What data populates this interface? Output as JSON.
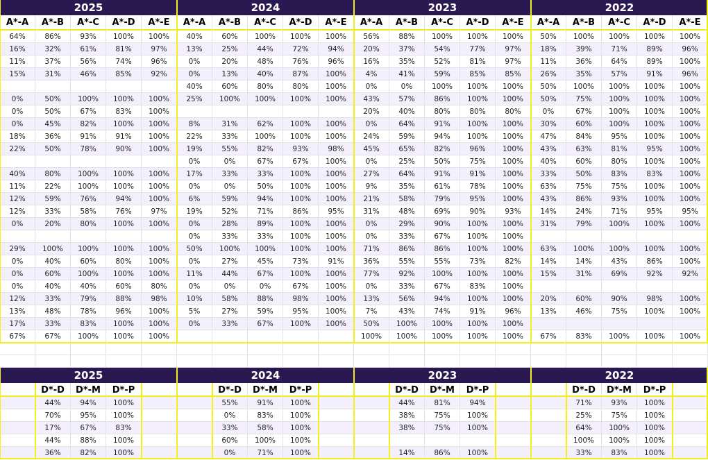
{
  "top": {
    "years": [
      "2025",
      "2024",
      "2023",
      "2022"
    ],
    "columns": [
      "A*-A",
      "A*-B",
      "A*-C",
      "A*-D",
      "A*-E"
    ],
    "rows": [
      [
        "64%",
        "86%",
        "93%",
        "100%",
        "100%",
        "40%",
        "60%",
        "100%",
        "100%",
        "100%",
        "56%",
        "88%",
        "100%",
        "100%",
        "100%",
        "50%",
        "100%",
        "100%",
        "100%",
        "100%"
      ],
      [
        "16%",
        "32%",
        "61%",
        "81%",
        "97%",
        "13%",
        "25%",
        "44%",
        "72%",
        "94%",
        "20%",
        "37%",
        "54%",
        "77%",
        "97%",
        "18%",
        "39%",
        "71%",
        "89%",
        "96%"
      ],
      [
        "11%",
        "37%",
        "56%",
        "74%",
        "96%",
        "0%",
        "20%",
        "48%",
        "76%",
        "96%",
        "16%",
        "35%",
        "52%",
        "81%",
        "97%",
        "11%",
        "36%",
        "64%",
        "89%",
        "100%"
      ],
      [
        "15%",
        "31%",
        "46%",
        "85%",
        "92%",
        "0%",
        "13%",
        "40%",
        "87%",
        "100%",
        "4%",
        "41%",
        "59%",
        "85%",
        "85%",
        "26%",
        "35%",
        "57%",
        "91%",
        "96%"
      ],
      [
        null,
        null,
        null,
        null,
        null,
        "40%",
        "60%",
        "80%",
        "80%",
        "100%",
        "0%",
        "0%",
        "100%",
        "100%",
        "100%",
        "50%",
        "100%",
        "100%",
        "100%",
        "100%"
      ],
      [
        "0%",
        "50%",
        "100%",
        "100%",
        "100%",
        "25%",
        "100%",
        "100%",
        "100%",
        "100%",
        "43%",
        "57%",
        "86%",
        "100%",
        "100%",
        "50%",
        "75%",
        "100%",
        "100%",
        "100%"
      ],
      [
        "0%",
        "50%",
        "67%",
        "83%",
        "100%",
        null,
        null,
        null,
        null,
        null,
        "20%",
        "40%",
        "80%",
        "80%",
        "80%",
        "0%",
        "67%",
        "100%",
        "100%",
        "100%"
      ],
      [
        "0%",
        "45%",
        "82%",
        "100%",
        "100%",
        "8%",
        "31%",
        "62%",
        "100%",
        "100%",
        "0%",
        "64%",
        "91%",
        "100%",
        "100%",
        "30%",
        "60%",
        "100%",
        "100%",
        "100%"
      ],
      [
        "18%",
        "36%",
        "91%",
        "91%",
        "100%",
        "22%",
        "33%",
        "100%",
        "100%",
        "100%",
        "24%",
        "59%",
        "94%",
        "100%",
        "100%",
        "47%",
        "84%",
        "95%",
        "100%",
        "100%"
      ],
      [
        "22%",
        "50%",
        "78%",
        "90%",
        "100%",
        "19%",
        "55%",
        "82%",
        "93%",
        "98%",
        "45%",
        "65%",
        "82%",
        "96%",
        "100%",
        "43%",
        "63%",
        "81%",
        "95%",
        "100%"
      ],
      [
        null,
        null,
        null,
        null,
        null,
        "0%",
        "0%",
        "67%",
        "67%",
        "100%",
        "0%",
        "25%",
        "50%",
        "75%",
        "100%",
        "40%",
        "60%",
        "80%",
        "100%",
        "100%"
      ],
      [
        "40%",
        "80%",
        "100%",
        "100%",
        "100%",
        "17%",
        "33%",
        "33%",
        "100%",
        "100%",
        "27%",
        "64%",
        "91%",
        "91%",
        "100%",
        "33%",
        "50%",
        "83%",
        "83%",
        "100%"
      ],
      [
        "11%",
        "22%",
        "100%",
        "100%",
        "100%",
        "0%",
        "0%",
        "50%",
        "100%",
        "100%",
        "9%",
        "35%",
        "61%",
        "78%",
        "100%",
        "63%",
        "75%",
        "75%",
        "100%",
        "100%"
      ],
      [
        "12%",
        "59%",
        "76%",
        "94%",
        "100%",
        "6%",
        "59%",
        "94%",
        "100%",
        "100%",
        "21%",
        "58%",
        "79%",
        "95%",
        "100%",
        "43%",
        "86%",
        "93%",
        "100%",
        "100%"
      ],
      [
        "12%",
        "33%",
        "58%",
        "76%",
        "97%",
        "19%",
        "52%",
        "71%",
        "86%",
        "95%",
        "31%",
        "48%",
        "69%",
        "90%",
        "93%",
        "14%",
        "24%",
        "71%",
        "95%",
        "95%"
      ],
      [
        "0%",
        "20%",
        "80%",
        "100%",
        "100%",
        "0%",
        "28%",
        "89%",
        "100%",
        "100%",
        "0%",
        "29%",
        "90%",
        "100%",
        "100%",
        "31%",
        "79%",
        "100%",
        "100%",
        "100%"
      ],
      [
        null,
        null,
        null,
        null,
        null,
        "0%",
        "33%",
        "33%",
        "100%",
        "100%",
        "0%",
        "33%",
        "67%",
        "100%",
        "100%",
        null,
        null,
        null,
        null,
        null
      ],
      [
        "29%",
        "100%",
        "100%",
        "100%",
        "100%",
        "50%",
        "100%",
        "100%",
        "100%",
        "100%",
        "71%",
        "86%",
        "86%",
        "100%",
        "100%",
        "63%",
        "100%",
        "100%",
        "100%",
        "100%"
      ],
      [
        "0%",
        "40%",
        "60%",
        "80%",
        "100%",
        "0%",
        "27%",
        "45%",
        "73%",
        "91%",
        "36%",
        "55%",
        "55%",
        "73%",
        "82%",
        "14%",
        "14%",
        "43%",
        "86%",
        "100%"
      ],
      [
        "0%",
        "60%",
        "100%",
        "100%",
        "100%",
        "11%",
        "44%",
        "67%",
        "100%",
        "100%",
        "77%",
        "92%",
        "100%",
        "100%",
        "100%",
        "15%",
        "31%",
        "69%",
        "92%",
        "92%"
      ],
      [
        "0%",
        "40%",
        "40%",
        "60%",
        "80%",
        "0%",
        "0%",
        "0%",
        "67%",
        "100%",
        "0%",
        "33%",
        "67%",
        "83%",
        "100%",
        null,
        null,
        null,
        null,
        null
      ],
      [
        "12%",
        "33%",
        "79%",
        "88%",
        "98%",
        "10%",
        "58%",
        "88%",
        "98%",
        "100%",
        "13%",
        "56%",
        "94%",
        "100%",
        "100%",
        "20%",
        "60%",
        "90%",
        "98%",
        "100%"
      ],
      [
        "13%",
        "48%",
        "78%",
        "96%",
        "100%",
        "5%",
        "27%",
        "59%",
        "95%",
        "100%",
        "7%",
        "43%",
        "74%",
        "91%",
        "96%",
        "13%",
        "46%",
        "75%",
        "100%",
        "100%"
      ],
      [
        "17%",
        "33%",
        "83%",
        "100%",
        "100%",
        "0%",
        "33%",
        "67%",
        "100%",
        "100%",
        "50%",
        "100%",
        "100%",
        "100%",
        "100%",
        null,
        null,
        null,
        null,
        null
      ],
      [
        "67%",
        "67%",
        "100%",
        "100%",
        "100%",
        null,
        null,
        null,
        null,
        null,
        "100%",
        "100%",
        "100%",
        "100%",
        "100%",
        "67%",
        "83%",
        "100%",
        "100%",
        "100%"
      ]
    ]
  },
  "bottom": {
    "columns": [
      "D*-D",
      "D*-M",
      "D*-P"
    ],
    "rows": [
      [
        "44%",
        "94%",
        "100%",
        "55%",
        "91%",
        "100%",
        "44%",
        "81%",
        "94%",
        "71%",
        "93%",
        "100%"
      ],
      [
        "70%",
        "95%",
        "100%",
        "0%",
        "83%",
        "100%",
        "38%",
        "75%",
        "100%",
        "25%",
        "75%",
        "100%"
      ],
      [
        "17%",
        "67%",
        "83%",
        "33%",
        "58%",
        "100%",
        "38%",
        "75%",
        "100%",
        "64%",
        "100%",
        "100%"
      ],
      [
        "44%",
        "88%",
        "100%",
        "60%",
        "100%",
        "100%",
        null,
        null,
        null,
        "100%",
        "100%",
        "100%"
      ],
      [
        "36%",
        "82%",
        "100%",
        "0%",
        "71%",
        "100%",
        "14%",
        "86%",
        "100%",
        "33%",
        "83%",
        "100%"
      ]
    ]
  }
}
